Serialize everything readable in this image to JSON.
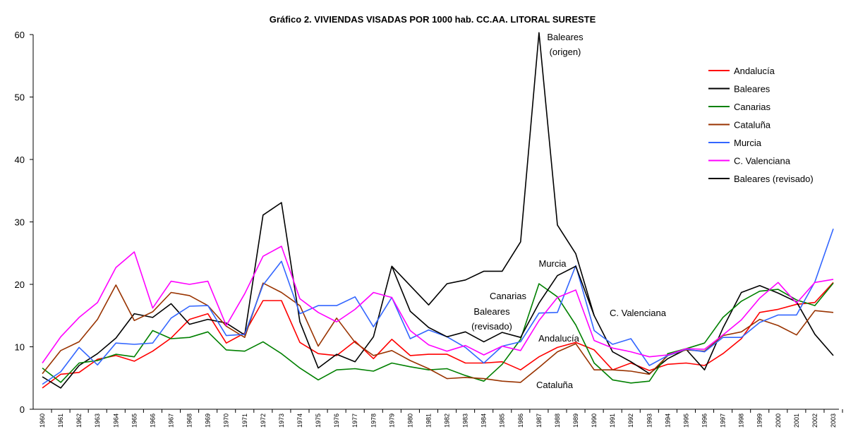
{
  "chart_data": {
    "type": "line",
    "title": "Gráfico 2.  VIVIENDAS VISADAS POR 1000 hab. CC.AA. LITORAL SURESTE",
    "categories": [
      "1960",
      "1961",
      "1962",
      "1963",
      "1964",
      "1965",
      "1966",
      "1967",
      "1968",
      "1969",
      "1970",
      "1971",
      "1972",
      "1973",
      "1974",
      "1975",
      "1976",
      "1977",
      "1978",
      "1979",
      "1980",
      "1981",
      "1982",
      "1983",
      "1984",
      "1985",
      "1986",
      "1987",
      "1988",
      "1989",
      "1990",
      "1991",
      "1992",
      "1993",
      "1994",
      "1995",
      "1996",
      "1997",
      "1998",
      "1999",
      "2000",
      "2001",
      "2002",
      "2003"
    ],
    "ylim": [
      0,
      60
    ],
    "yticks": [
      0,
      10,
      20,
      30,
      40,
      50,
      60
    ],
    "grid": false,
    "legend": "right",
    "series": [
      {
        "name": "Andalucía",
        "color": "#ff0000",
        "values": [
          3.4,
          5.6,
          5.9,
          8.0,
          8.6,
          7.7,
          9.3,
          11.4,
          14.4,
          15.3,
          10.6,
          12.2,
          17.4,
          17.4,
          10.7,
          8.9,
          8.6,
          10.9,
          8.1,
          11.2,
          8.6,
          8.8,
          8.8,
          7.4,
          7.4,
          7.6,
          6.3,
          8.4,
          9.9,
          10.7,
          9.5,
          6.3,
          7.4,
          6.2,
          7.2,
          7.4,
          7.0,
          8.9,
          11.3,
          15.5,
          16.0,
          16.8,
          17.1,
          20.3
        ]
      },
      {
        "name": "Baleares",
        "color": "#000000",
        "values": [
          5.2,
          3.4,
          7.0,
          8.9,
          11.4,
          15.3,
          14.7,
          16.9,
          13.6,
          14.4,
          13.8,
          11.9,
          31.1,
          33.1,
          14.0,
          6.6,
          8.8,
          7.6,
          11.6,
          22.9,
          19.8,
          16.7,
          20.1,
          20.7,
          22.1,
          22.1,
          26.8,
          60.3,
          29.5,
          24.9,
          15.0,
          9.2,
          7.6,
          5.7,
          8.1,
          9.6,
          6.3,
          13.0,
          18.7,
          19.8,
          18.6,
          17.2,
          12.0,
          8.6
        ]
      },
      {
        "name": "Canarias",
        "color": "#008000",
        "values": [
          6.6,
          4.3,
          7.4,
          7.8,
          8.8,
          8.4,
          12.6,
          11.3,
          11.5,
          12.4,
          9.5,
          9.3,
          10.8,
          8.9,
          6.6,
          4.7,
          6.3,
          6.5,
          6.1,
          7.4,
          6.8,
          6.3,
          6.5,
          5.4,
          4.5,
          7.2,
          11.2,
          20.1,
          18.0,
          13.5,
          7.4,
          4.7,
          4.2,
          4.5,
          8.9,
          9.7,
          10.6,
          14.7,
          17.3,
          18.9,
          19.2,
          17.5,
          16.6,
          20.2
        ]
      },
      {
        "name": "Cataluña",
        "color": "#993300",
        "values": [
          5.7,
          9.4,
          10.8,
          14.4,
          19.9,
          14.2,
          15.6,
          18.7,
          18.2,
          16.6,
          13.3,
          11.5,
          20.2,
          18.7,
          16.6,
          10.1,
          14.6,
          10.7,
          8.6,
          9.4,
          7.8,
          6.5,
          4.9,
          5.1,
          4.9,
          4.5,
          4.3,
          6.7,
          9.2,
          10.5,
          6.3,
          6.3,
          6.1,
          5.6,
          8.6,
          9.5,
          9.3,
          11.8,
          12.4,
          14.4,
          13.4,
          11.9,
          15.8,
          15.5
        ]
      },
      {
        "name": "Murcia",
        "color": "#3366ff",
        "values": [
          4.0,
          6.0,
          9.9,
          7.1,
          10.6,
          10.4,
          10.6,
          14.6,
          16.5,
          16.6,
          11.8,
          12.0,
          19.9,
          23.7,
          15.3,
          16.6,
          16.6,
          18.0,
          13.2,
          17.9,
          11.3,
          12.7,
          11.6,
          9.9,
          7.4,
          10.1,
          10.8,
          15.4,
          15.5,
          23.0,
          12.6,
          10.4,
          11.3,
          7.0,
          8.6,
          9.6,
          9.2,
          11.5,
          11.5,
          13.9,
          15.1,
          15.1,
          20.4,
          28.9
        ]
      },
      {
        "name": "C. Valenciana",
        "color": "#ff00ff",
        "values": [
          7.4,
          11.6,
          14.7,
          17.1,
          22.7,
          25.2,
          16.2,
          20.5,
          20.0,
          20.5,
          13.4,
          18.5,
          24.5,
          26.1,
          17.7,
          15.5,
          14.0,
          16.0,
          18.7,
          17.9,
          12.6,
          10.3,
          9.3,
          10.2,
          8.7,
          10.1,
          9.4,
          14.2,
          17.9,
          19.1,
          11.0,
          9.8,
          9.2,
          8.4,
          8.7,
          9.7,
          9.6,
          11.9,
          14.3,
          17.8,
          20.3,
          17.0,
          20.3,
          20.8
        ]
      },
      {
        "name": "Baleares (revisado)",
        "color": "#000000",
        "values": [
          null,
          null,
          null,
          null,
          null,
          null,
          null,
          null,
          null,
          null,
          null,
          null,
          null,
          null,
          null,
          null,
          null,
          null,
          null,
          22.9,
          15.7,
          13.1,
          11.6,
          12.4,
          10.8,
          12.3,
          11.5,
          17.0,
          21.4,
          22.9,
          15.0,
          null,
          null,
          null,
          null,
          null,
          null,
          null,
          null,
          null,
          null,
          null,
          null,
          null
        ]
      }
    ],
    "annotations": [
      {
        "lines": [
          "Baleares",
          "(origen)"
        ]
      },
      {
        "lines": [
          "Murcia"
        ]
      },
      {
        "lines": [
          "Canarias"
        ]
      },
      {
        "lines": [
          "Baleares",
          "(revisado)"
        ]
      },
      {
        "lines": [
          "Andalucía"
        ]
      },
      {
        "lines": [
          "C. Valenciana"
        ]
      },
      {
        "lines": [
          "Cataluña"
        ]
      }
    ]
  }
}
